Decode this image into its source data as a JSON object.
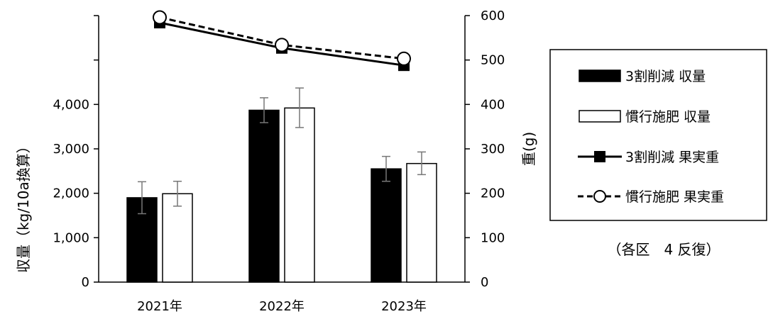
{
  "chart_data": {
    "type": "bar",
    "categories": [
      "2021年",
      "2022年",
      "2023年"
    ],
    "left_axis": {
      "label": "収量（kg/10a換算）",
      "ylim": [
        0,
        6000
      ],
      "ticks": [
        "0",
        "1,000",
        "2,000",
        "3,000",
        "4,000"
      ]
    },
    "right_axis": {
      "label": "重(g)",
      "ylim": [
        0,
        600
      ],
      "ticks": [
        "0",
        "100",
        "200",
        "300",
        "400",
        "500",
        "600"
      ]
    },
    "series": [
      {
        "name": "3割削減 収量",
        "type": "bar",
        "axis": "left",
        "color": "#000000",
        "fill": "#000000",
        "values": [
          1900,
          3870,
          2550
        ],
        "error_low": [
          1540,
          3590,
          2270
        ],
        "error_high": [
          2260,
          4150,
          2830
        ]
      },
      {
        "name": "慣行施肥 収量",
        "type": "bar",
        "axis": "left",
        "color": "#000000",
        "fill": "#ffffff",
        "values": [
          1990,
          3920,
          2670
        ],
        "error_low": [
          1710,
          3480,
          2420
        ],
        "error_high": [
          2270,
          4370,
          2930
        ]
      },
      {
        "name": "3割削減 果実重",
        "type": "line",
        "axis": "right",
        "color": "#000000",
        "dash": "solid",
        "marker": "square",
        "values": [
          584,
          527,
          488
        ]
      },
      {
        "name": "慣行施肥 果実重",
        "type": "line",
        "axis": "right",
        "color": "#000000",
        "dash": "dashed",
        "marker": "open-circle",
        "values": [
          596,
          534,
          503
        ]
      }
    ],
    "legend_placement": "right",
    "grid": false,
    "note": "（各区　4 反復）"
  }
}
